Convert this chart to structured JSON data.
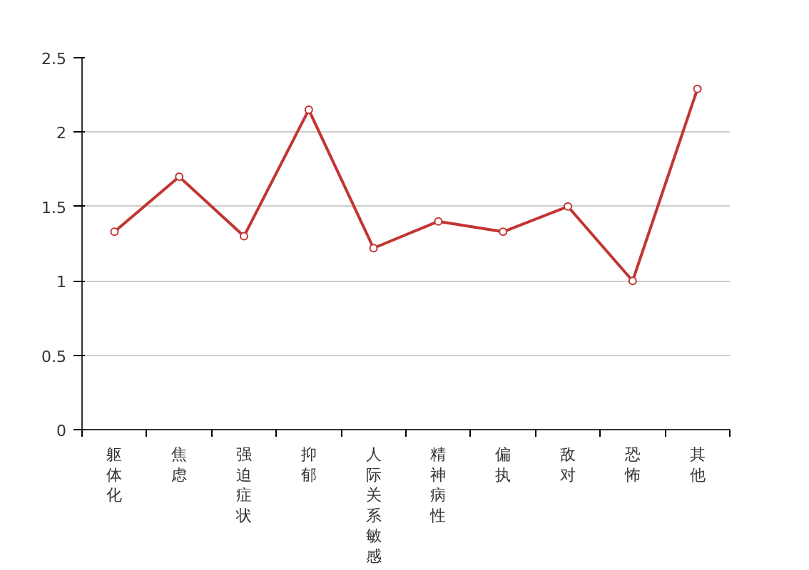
{
  "chart_data": {
    "type": "line",
    "categories": [
      "躯体化",
      "焦虑",
      "强迫症状",
      "抑郁",
      "人际关系敏感",
      "精神病性",
      "偏执",
      "敌对",
      "恐怖",
      "其他"
    ],
    "series": [
      {
        "color": "#c23531",
        "values": [
          1.33,
          1.7,
          1.3,
          2.15,
          1.22,
          1.4,
          1.33,
          1.5,
          1.0,
          2.29
        ]
      }
    ],
    "ylim": [
      0,
      2.5
    ],
    "yticks": [
      0,
      0.5,
      1,
      1.5,
      2,
      2.5
    ],
    "grid": "y",
    "marker": "circle",
    "line_style": "solid"
  }
}
